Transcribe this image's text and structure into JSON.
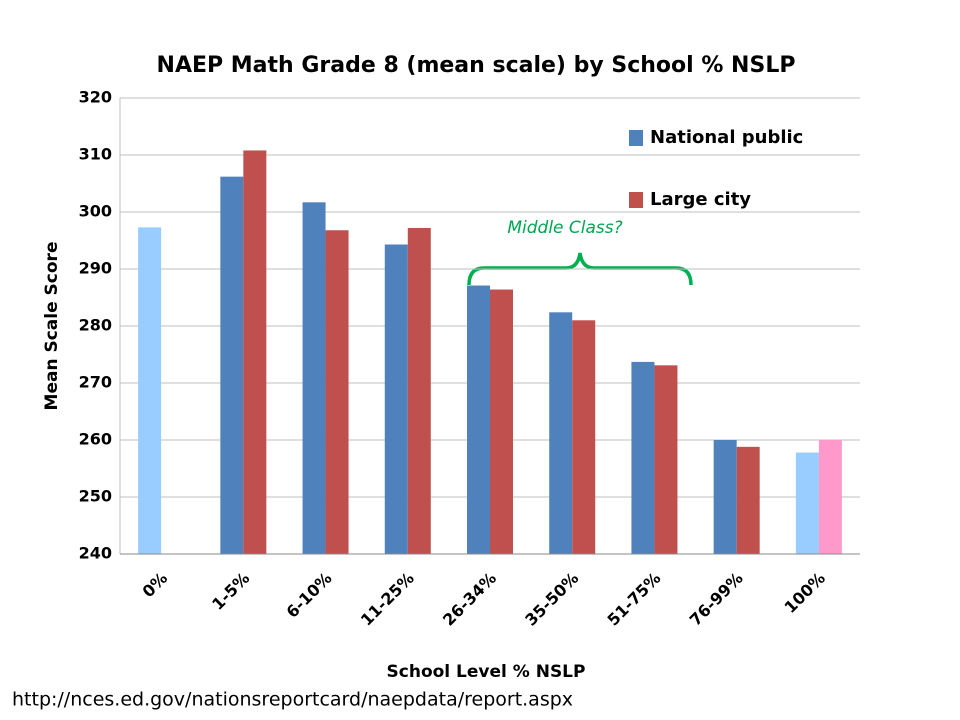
{
  "chart_data": {
    "type": "bar",
    "title": "NAEP Math Grade 8 (mean scale) by School % NSLP",
    "x_label": "School Level % NSLP",
    "y_label": "Mean Scale Score",
    "annotation": "Middle Class?",
    "source": "http://nces.ed.gov/nationsreportcard/naepdata/report.aspx",
    "categories": [
      "0%",
      "1-5%",
      "6-10%",
      "11-25%",
      "26-34%",
      "35-50%",
      "51-75%",
      "76-99%",
      "100%"
    ],
    "series": [
      {
        "name": "National public",
        "color": "#4f81bd",
        "point_colors": [
          "#99ccff",
          "#4f81bd",
          "#4f81bd",
          "#4f81bd",
          "#4f81bd",
          "#4f81bd",
          "#4f81bd",
          "#4f81bd",
          "#99ccff"
        ],
        "values": [
          297.3,
          306.2,
          301.7,
          294.3,
          287.1,
          282.4,
          273.7,
          260,
          257.8
        ]
      },
      {
        "name": "Large city",
        "color": "#c0504d",
        "point_colors": [
          "#c0504d",
          "#c0504d",
          "#c0504d",
          "#c0504d",
          "#c0504d",
          "#c0504d",
          "#c0504d",
          "#c0504d",
          "#ff99cc"
        ],
        "values": [
          null,
          310.8,
          296.8,
          297.2,
          286.4,
          281.0,
          273.1,
          258.8,
          260
        ]
      }
    ],
    "ylim": [
      240,
      320
    ],
    "yticks": [
      240,
      250,
      260,
      270,
      280,
      290,
      300,
      310,
      320
    ],
    "grid": true
  }
}
